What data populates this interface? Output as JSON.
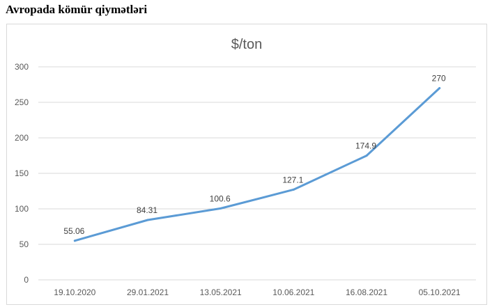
{
  "page": {
    "heading": "Avropada kömür qiymətləri"
  },
  "colors": {
    "series_line": "#5b9bd5",
    "gridline": "#d9d9d9",
    "text": "#595959"
  },
  "chart_data": {
    "type": "line",
    "title": "$/ton",
    "xlabel": "",
    "ylabel": "",
    "categories": [
      "19.10.2020",
      "29.01.2021",
      "13.05.2021",
      "10.06.2021",
      "16.08.2021",
      "05.10.2021"
    ],
    "series": [
      {
        "values": [
          55.06,
          84.31,
          100.6,
          127.1,
          174.9,
          270
        ],
        "labels": [
          "55.06",
          "84.31",
          "100.6",
          "127.1",
          "174.9",
          "270"
        ]
      }
    ],
    "ylim": [
      0,
      300
    ],
    "yticks": [
      0,
      50,
      100,
      150,
      200,
      250,
      300
    ],
    "grid": true,
    "legend": "none"
  }
}
